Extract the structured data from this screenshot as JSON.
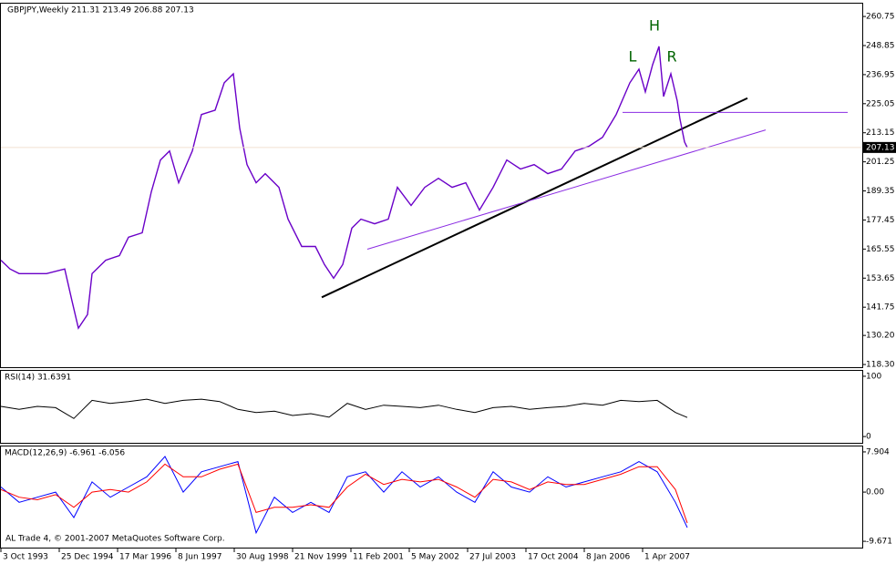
{
  "copyright": "AL Trade 4, © 2001-2007 MetaQuotes Software Corp.",
  "chart_data": [
    {
      "type": "line",
      "title": "GBPJPY,Weekly  211.31 213.49 206.88 207.13",
      "x": [
        0,
        10,
        20,
        35,
        50,
        70,
        78,
        85,
        95,
        100,
        115,
        130,
        140,
        155,
        165,
        175,
        185,
        195,
        210,
        220,
        235,
        245,
        255,
        262,
        270,
        280,
        290,
        305,
        315,
        330,
        345,
        355,
        365,
        375,
        385,
        395,
        410,
        425,
        435,
        450,
        465,
        480,
        495,
        510,
        525,
        540,
        555,
        570,
        585,
        600,
        615,
        630,
        645,
        660,
        675,
        690,
        700,
        707,
        715,
        722,
        727,
        735,
        742,
        745,
        750,
        753
      ],
      "series": [
        {
          "color": "#6a00c8",
          "values": [
            161.0,
            157.4,
            155.5,
            155.5,
            155.5,
            157.4,
            144.3,
            133.2,
            138.7,
            155.5,
            161.0,
            162.9,
            170.4,
            172.2,
            189.0,
            202.0,
            205.7,
            192.7,
            205.7,
            220.6,
            222.4,
            233.6,
            237.3,
            215.0,
            200.1,
            192.7,
            196.4,
            190.8,
            177.8,
            166.6,
            166.6,
            159.2,
            153.6,
            159.2,
            174.1,
            177.8,
            175.9,
            177.8,
            190.8,
            183.4,
            190.8,
            194.5,
            190.8,
            192.7,
            181.5,
            190.8,
            202.0,
            198.3,
            200.1,
            196.4,
            198.3,
            205.7,
            207.6,
            211.3,
            220.6,
            233.6,
            239.2,
            229.9,
            241.0,
            248.5,
            228.0,
            237.3,
            226.2,
            218.7,
            209.4,
            207.13
          ]
        }
      ],
      "last_price": 207.13,
      "trendlines": [
        {
          "color": "#000000",
          "x": [
            352,
            819
          ],
          "values": [
            145.8,
            227.3
          ]
        },
        {
          "color": "#8a2be2",
          "x": [
            402,
            839
          ],
          "values": [
            165.5,
            214.3
          ]
        },
        {
          "color": "#8a2be2",
          "x": [
            682,
            929
          ],
          "values": [
            221.5,
            221.5
          ]
        }
      ],
      "annotations": [
        {
          "text": "H",
          "x": 717,
          "value": 256.7
        },
        {
          "text": "L",
          "x": 693,
          "value": 244.0
        },
        {
          "text": "R",
          "x": 736,
          "value": 244.0
        }
      ],
      "xlim": [
        0,
        944
      ],
      "xticks": [
        {
          "value": 0,
          "label": "3 Oct 1993"
        },
        {
          "value": 64,
          "label": "25 Dec 1994"
        },
        {
          "value": 128,
          "label": "17 Mar 1996"
        },
        {
          "value": 192,
          "label": "8 Jun 1997"
        },
        {
          "value": 256,
          "label": "30 Aug 1998"
        },
        {
          "value": 320,
          "label": "21 Nov 1999"
        },
        {
          "value": 384,
          "label": "11 Feb 2001"
        },
        {
          "value": 448,
          "label": "5 May 2002"
        },
        {
          "value": 512,
          "label": "27 Jul 2003"
        },
        {
          "value": 576,
          "label": "17 Oct 2004"
        },
        {
          "value": 640,
          "label": "8 Jan 2006"
        },
        {
          "value": 704,
          "label": "1 Apr 2007"
        }
      ],
      "ylim": [
        117.2,
        266.0
      ],
      "yticks": [
        260.75,
        248.85,
        236.95,
        225.05,
        213.15,
        201.25,
        189.35,
        177.45,
        165.55,
        153.65,
        141.75,
        {
          "value": 130.2,
          "label": "130.20"
        },
        {
          "value": 118.3,
          "label": "118.30"
        }
      ]
    },
    {
      "type": "line",
      "title": "RSI(14) 31.6391",
      "x": [
        0,
        20,
        40,
        60,
        80,
        100,
        120,
        140,
        160,
        180,
        200,
        220,
        240,
        260,
        280,
        300,
        320,
        340,
        360,
        380,
        400,
        420,
        440,
        460,
        480,
        500,
        520,
        540,
        560,
        580,
        600,
        620,
        640,
        660,
        680,
        700,
        720,
        740,
        753
      ],
      "series": [
        {
          "color": "#000000",
          "values": [
            50,
            45,
            50,
            48,
            30,
            60,
            55,
            58,
            62,
            55,
            60,
            62,
            58,
            45,
            40,
            42,
            35,
            38,
            32,
            55,
            45,
            52,
            50,
            48,
            52,
            45,
            40,
            48,
            50,
            45,
            48,
            50,
            55,
            52,
            60,
            58,
            60,
            40,
            31.6391
          ]
        }
      ],
      "xlim": [
        0,
        944
      ],
      "ylim": [
        -10.4,
        109
      ],
      "yticks": [
        100,
        0
      ]
    },
    {
      "type": "line",
      "title": "MACD(12,26,9) -6.961 -6.056",
      "x": [
        0,
        20,
        40,
        60,
        80,
        100,
        120,
        140,
        160,
        180,
        200,
        220,
        240,
        260,
        280,
        300,
        320,
        340,
        360,
        380,
        400,
        420,
        440,
        460,
        480,
        500,
        520,
        540,
        560,
        580,
        600,
        620,
        640,
        660,
        680,
        700,
        720,
        740,
        753
      ],
      "series": [
        {
          "color": "#0000ff",
          "values": [
            1,
            -2,
            -1,
            0,
            -5,
            2,
            -1,
            1,
            3,
            7,
            0,
            4,
            5,
            6,
            -8,
            -1,
            -4,
            -2,
            -4,
            3,
            4,
            0,
            4,
            1,
            3,
            0,
            -2,
            4,
            1,
            0,
            3,
            1,
            2,
            3,
            4,
            6,
            4,
            -2,
            -6.961
          ]
        },
        {
          "color": "#ff0000",
          "values": [
            0.5,
            -1,
            -1.5,
            -0.5,
            -3,
            0,
            0.5,
            0,
            2,
            5.5,
            3,
            3,
            4.5,
            5.5,
            -4,
            -3,
            -3,
            -2.5,
            -3,
            1,
            3.5,
            1.5,
            2.5,
            2,
            2.5,
            1,
            -1,
            2.5,
            2,
            0.5,
            2,
            1.5,
            1.5,
            2.5,
            3.5,
            5,
            5,
            0.5,
            -6.056
          ]
        }
      ],
      "xlim": [
        0,
        944
      ],
      "ylim": [
        -10.91,
        8.97
      ],
      "yticks": [
        7.904,
        {
          "value": 0,
          "label": "0.00"
        },
        -9.671
      ]
    }
  ]
}
